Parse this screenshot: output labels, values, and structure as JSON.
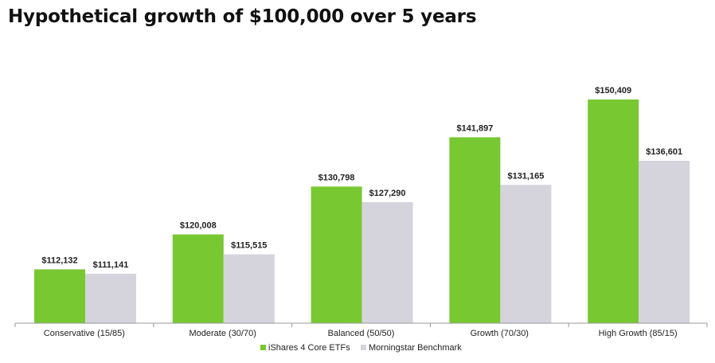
{
  "title": "Hypothetical growth of $100,000 over 5 years",
  "chart_data": {
    "type": "bar",
    "title": "Hypothetical growth of $100,000 over 5 years",
    "xlabel": "",
    "ylabel": "",
    "categories": [
      "Conservative (15/85)",
      "Moderate (30/70)",
      "Balanced (50/50)",
      "Growth (70/30)",
      "High Growth (85/15)"
    ],
    "series": [
      {
        "name": "iShares 4 Core ETFs",
        "color": "#78c832",
        "values": [
          112132,
          120008,
          130798,
          141897,
          150409
        ],
        "labels": [
          "$112,132",
          "$120,008",
          "$130,798",
          "$141,897",
          "$150,409"
        ]
      },
      {
        "name": "Morningstar Benchmark",
        "color": "#d5d4dd",
        "values": [
          111141,
          115515,
          127290,
          131165,
          136601
        ],
        "labels": [
          "$111,141",
          "$115,515",
          "$127,290",
          "$131,165",
          "$136,601"
        ]
      }
    ],
    "ylim": [
      100000,
      155000
    ],
    "grid": false,
    "legend_position": "bottom-center",
    "axis_color": "#9a9a9a"
  }
}
